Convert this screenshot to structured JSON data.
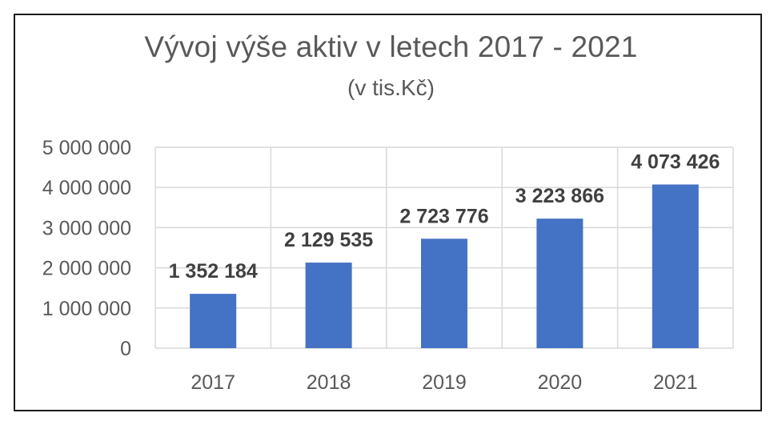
{
  "chart_data": {
    "type": "bar",
    "title": "Vývoj výše aktiv v letech 2017 - 2021",
    "subtitle": "(v tis.Kč)",
    "categories": [
      "2017",
      "2018",
      "2019",
      "2020",
      "2021"
    ],
    "values": [
      1352184,
      2129535,
      2723776,
      3223866,
      4073426
    ],
    "data_labels": [
      "1 352 184",
      "2 129 535",
      "2 723 776",
      "3 223 866",
      "4 073 426"
    ],
    "ylim": [
      0,
      5000000
    ],
    "yticks": [
      0,
      1000000,
      2000000,
      3000000,
      4000000,
      5000000
    ],
    "ytick_labels": [
      "0",
      "1 000 000",
      "2 000 000",
      "3 000 000",
      "4 000 000",
      "5 000 000"
    ],
    "xlabel": "",
    "ylabel": "",
    "grid": true,
    "legend": "none",
    "bar_color": "#4472C4",
    "gridline_color": "#d9d9d9",
    "label_color": "#404040",
    "tick_color": "#595959"
  }
}
